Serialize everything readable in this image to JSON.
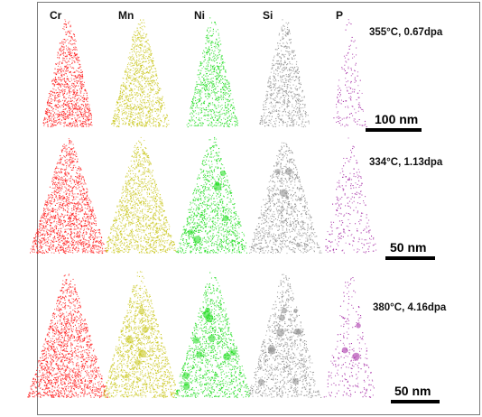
{
  "elements": [
    {
      "symbol": "Cr",
      "color": "#ff1a1a"
    },
    {
      "symbol": "Mn",
      "color": "#c9c61c"
    },
    {
      "symbol": "Ni",
      "color": "#1adc1a"
    },
    {
      "symbol": "Si",
      "color": "#8a8a8a"
    },
    {
      "symbol": "P",
      "color": "#a020a0"
    }
  ],
  "rows": [
    {
      "condition": "355°C, 0.67dpa",
      "scale_bar": "100 nm"
    },
    {
      "condition": "334°C, 1.13dpa",
      "scale_bar": "50 nm"
    },
    {
      "condition": "380°C, 4.16dpa",
      "scale_bar": "50 nm"
    }
  ]
}
